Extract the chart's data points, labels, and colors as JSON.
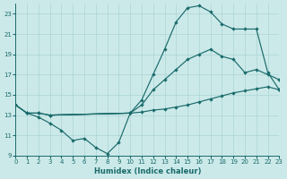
{
  "xlabel": "Humidex (Indice chaleur)",
  "xlim": [
    0,
    23
  ],
  "ylim": [
    9,
    24
  ],
  "yticks": [
    9,
    11,
    13,
    15,
    17,
    19,
    21,
    23
  ],
  "xticks": [
    0,
    1,
    2,
    3,
    4,
    5,
    6,
    7,
    8,
    9,
    10,
    11,
    12,
    13,
    14,
    15,
    16,
    17,
    18,
    19,
    20,
    21,
    22,
    23
  ],
  "bg_color": "#cce9e9",
  "grid_color": "#aad4d4",
  "line_color": "#1a6b6b",
  "lines": [
    {
      "x": [
        0,
        1,
        2,
        3,
        4,
        5,
        6,
        7,
        8,
        9,
        10
      ],
      "y": [
        14.0,
        13.2,
        12.8,
        12.2,
        11.5,
        10.5,
        10.7,
        9.8,
        9.2,
        10.3,
        13.2
      ]
    },
    {
      "x": [
        0,
        1,
        2,
        3,
        10,
        11,
        12,
        13,
        14,
        15,
        16,
        17,
        18,
        19,
        20,
        21,
        22,
        23
      ],
      "y": [
        14.0,
        13.2,
        13.2,
        13.0,
        13.2,
        13.3,
        13.5,
        13.6,
        13.8,
        14.0,
        14.3,
        14.6,
        14.9,
        15.2,
        15.4,
        15.6,
        15.8,
        15.5
      ]
    },
    {
      "x": [
        0,
        1,
        2,
        3,
        10,
        11,
        12,
        13,
        14,
        15,
        16,
        17,
        18,
        19,
        20,
        21,
        22,
        23
      ],
      "y": [
        14.0,
        13.2,
        13.2,
        13.0,
        13.2,
        14.5,
        17.0,
        19.5,
        22.2,
        23.6,
        23.8,
        23.2,
        22.0,
        21.5,
        21.5,
        21.5,
        17.2,
        15.5
      ]
    },
    {
      "x": [
        3,
        10,
        11,
        12,
        13,
        14,
        15,
        16,
        17,
        18,
        19,
        20,
        21,
        22,
        23
      ],
      "y": [
        13.0,
        13.2,
        14.0,
        15.5,
        16.5,
        17.5,
        18.5,
        19.0,
        19.5,
        18.8,
        18.5,
        17.2,
        17.5,
        17.0,
        16.5
      ]
    }
  ]
}
